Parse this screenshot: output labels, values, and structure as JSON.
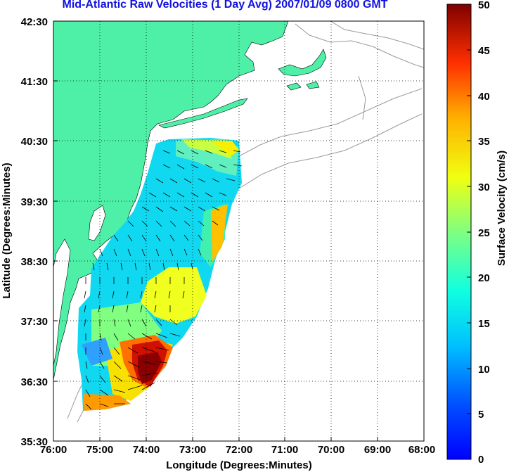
{
  "title": "Mid-Atlantic Raw Velocities (1 Day Avg) 2007/01/09 0800 GMT",
  "map": {
    "xlabel": "Longitude (Degrees:Minutes)",
    "ylabel": "Latitude (Degrees:Minutes)",
    "lon_ticks": [
      "76:00",
      "75:00",
      "74:00",
      "73:00",
      "72:00",
      "71:00",
      "70:00",
      "69:00",
      "68:00"
    ],
    "lat_ticks": [
      "42:30",
      "41:30",
      "40:30",
      "39:30",
      "38:30",
      "37:30",
      "36:30",
      "35:30"
    ],
    "lon_range": [
      -76,
      -68
    ],
    "lat_range": [
      35.5,
      42.5
    ],
    "land_color": "#4ef0a8",
    "grid": "dotted"
  },
  "colorbar": {
    "label": "Surface Velocity (cm/s)",
    "ticks": [
      "0",
      "5",
      "10",
      "15",
      "20",
      "25",
      "30",
      "35",
      "40",
      "45",
      "50"
    ],
    "range": [
      0,
      50
    ],
    "colormap": "jet"
  }
}
